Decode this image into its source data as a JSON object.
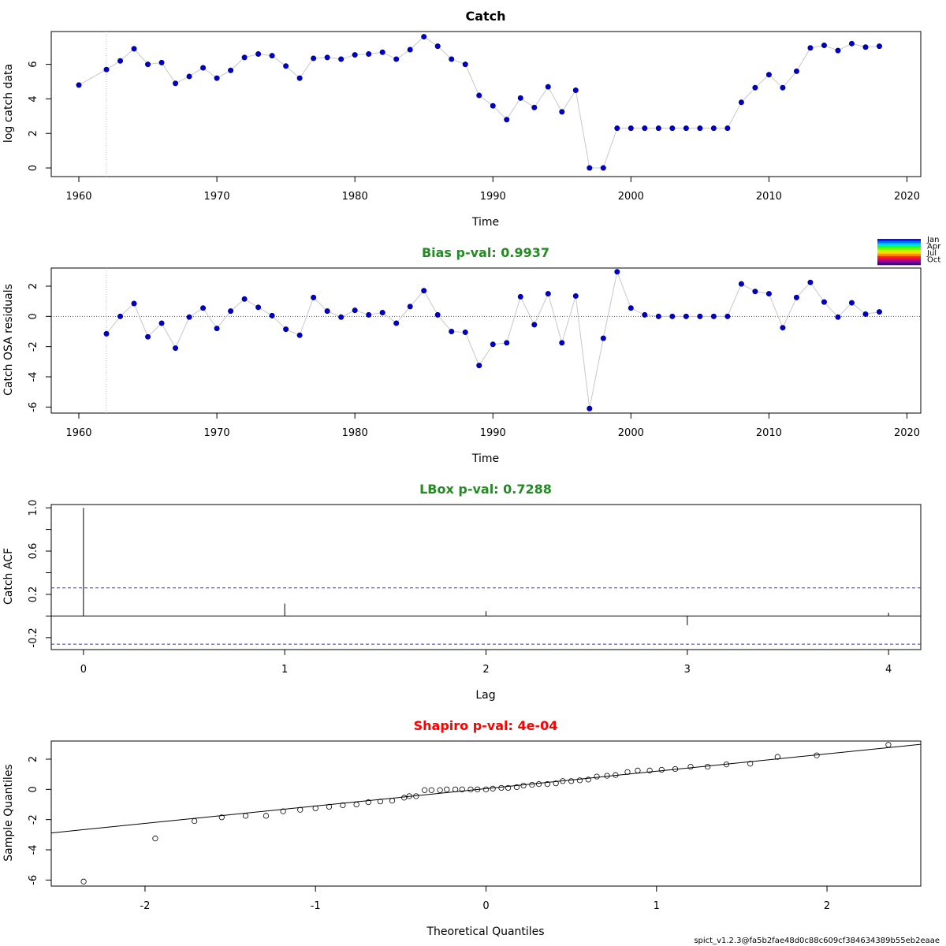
{
  "footer": "spict_v1.2.3@fa5b2fae48d0c88c609cf384634389b55eb2eaae",
  "chart_data": [
    {
      "type": "line",
      "title": "Catch",
      "title_color": "#000000",
      "xlabel": "Time",
      "ylabel": "log catch data",
      "xlim": [
        1958,
        2021
      ],
      "ylim": [
        -0.5,
        7.9
      ],
      "xticks": [
        1960,
        1970,
        1980,
        1990,
        2000,
        2010,
        2020
      ],
      "yticks": [
        0,
        2,
        4,
        6
      ],
      "vline": 1962,
      "point_color": "#0000cd",
      "line_color": "#c8c8c8",
      "x": [
        1960,
        1962,
        1963,
        1964,
        1965,
        1966,
        1967,
        1968,
        1969,
        1970,
        1971,
        1972,
        1973,
        1974,
        1975,
        1976,
        1977,
        1978,
        1979,
        1980,
        1981,
        1982,
        1983,
        1984,
        1985,
        1986,
        1987,
        1988,
        1989,
        1990,
        1991,
        1992,
        1993,
        1994,
        1995,
        1996,
        1997,
        1998,
        1999,
        2000,
        2001,
        2002,
        2003,
        2004,
        2005,
        2006,
        2007,
        2008,
        2009,
        2010,
        2011,
        2012,
        2013,
        2014,
        2015,
        2016,
        2017,
        2018
      ],
      "y": [
        4.8,
        5.7,
        6.2,
        6.9,
        6.0,
        6.1,
        4.9,
        5.3,
        5.8,
        5.2,
        5.65,
        6.4,
        6.6,
        6.5,
        5.9,
        5.2,
        6.35,
        6.4,
        6.3,
        6.55,
        6.6,
        6.7,
        6.3,
        6.85,
        7.6,
        7.05,
        6.3,
        6.0,
        4.2,
        3.6,
        2.8,
        4.05,
        3.5,
        4.7,
        3.25,
        4.5,
        0.0,
        0.0,
        2.3,
        2.3,
        2.3,
        2.3,
        2.3,
        2.3,
        2.3,
        2.3,
        2.3,
        3.8,
        4.65,
        5.4,
        4.65,
        5.6,
        6.95,
        7.1,
        6.8,
        7.2,
        7.0,
        7.05
      ]
    },
    {
      "type": "line",
      "title": "Bias p-val: 0.9937",
      "title_color": "#228b22",
      "xlabel": "Time",
      "ylabel": "Catch OSA residuals",
      "xlim": [
        1958,
        2021
      ],
      "ylim": [
        -6.4,
        3.2
      ],
      "xticks": [
        1960,
        1970,
        1980,
        1990,
        2000,
        2010,
        2020
      ],
      "yticks": [
        -6,
        -4,
        -2,
        0,
        2
      ],
      "vline": 1962,
      "hline": 0,
      "point_color": "#0000cd",
      "line_color": "#c8c8c8",
      "legend": {
        "labels": [
          "Jan",
          "Apr",
          "Jul",
          "Oct"
        ],
        "colors": [
          "#1010ff",
          "#0070ff",
          "#00d0ff",
          "#00ff60",
          "#60ff00",
          "#d0ff00",
          "#ffd000",
          "#ff8000",
          "#ff2000",
          "#e00060",
          "#8000a0",
          "#400080"
        ]
      },
      "x": [
        1962,
        1963,
        1964,
        1965,
        1966,
        1967,
        1968,
        1969,
        1970,
        1971,
        1972,
        1973,
        1974,
        1975,
        1976,
        1977,
        1978,
        1979,
        1980,
        1981,
        1982,
        1983,
        1984,
        1985,
        1986,
        1987,
        1988,
        1989,
        1990,
        1991,
        1992,
        1993,
        1994,
        1995,
        1996,
        1997,
        1998,
        1999,
        2000,
        2001,
        2002,
        2003,
        2004,
        2005,
        2006,
        2007,
        2008,
        2009,
        2010,
        2011,
        2012,
        2013,
        2014,
        2015,
        2016,
        2017,
        2018
      ],
      "y": [
        -1.15,
        0.0,
        0.85,
        -1.35,
        -0.45,
        -2.1,
        -0.05,
        0.55,
        -0.8,
        0.35,
        1.15,
        0.6,
        0.05,
        -0.85,
        -1.25,
        1.25,
        0.35,
        -0.05,
        0.4,
        0.1,
        0.25,
        -0.45,
        0.65,
        1.7,
        0.1,
        -1.0,
        -1.05,
        -3.25,
        -1.85,
        -1.75,
        1.3,
        -0.55,
        1.5,
        -1.75,
        1.35,
        -6.1,
        -1.45,
        2.95,
        0.55,
        0.1,
        0.0,
        0.0,
        0.0,
        0.0,
        0.0,
        0.0,
        2.15,
        1.65,
        1.5,
        -0.75,
        1.25,
        2.25,
        0.95,
        -0.05,
        0.9,
        0.15,
        0.3
      ]
    },
    {
      "type": "bar",
      "title": "LBox p-val: 0.7288",
      "title_color": "#228b22",
      "xlabel": "Lag",
      "ylabel": "Catch ACF",
      "xlim": [
        -0.16,
        4.16
      ],
      "ylim": [
        -0.31,
        1.03
      ],
      "xticks": [
        0,
        1,
        2,
        3,
        4
      ],
      "yticks": [
        -0.2,
        0.2,
        0.6,
        1.0
      ],
      "yticks_minor": [
        0.0,
        0.4,
        0.8
      ],
      "ci": 0.26,
      "categories": [
        0,
        1,
        2,
        3,
        4
      ],
      "values": [
        1.0,
        0.115,
        0.045,
        -0.085,
        0.03
      ]
    },
    {
      "type": "scatter",
      "title": "Shapiro p-val: 4e-04",
      "title_color": "#ff0000",
      "xlabel": "Theoretical Quantiles",
      "ylabel": "Sample Quantiles",
      "xlim": [
        -2.55,
        2.55
      ],
      "ylim": [
        -6.4,
        3.2
      ],
      "xticks": [
        -2,
        -1,
        0,
        1,
        2
      ],
      "yticks": [
        -6,
        -4,
        -2,
        0,
        2
      ],
      "qq_line": {
        "intercept": 0.05,
        "slope": 1.15
      },
      "x": [
        -2.36,
        -1.94,
        -1.71,
        -1.55,
        -1.41,
        -1.29,
        -1.19,
        -1.09,
        -1.0,
        -0.92,
        -0.84,
        -0.76,
        -0.69,
        -0.62,
        -0.55,
        -0.48,
        -0.45,
        -0.41,
        -0.36,
        -0.32,
        -0.27,
        -0.23,
        -0.18,
        -0.14,
        -0.09,
        -0.05,
        0.0,
        0.04,
        0.09,
        0.13,
        0.18,
        0.22,
        0.27,
        0.31,
        0.36,
        0.41,
        0.45,
        0.5,
        0.55,
        0.6,
        0.65,
        0.71,
        0.76,
        0.83,
        0.89,
        0.96,
        1.03,
        1.11,
        1.2,
        1.3,
        1.41,
        1.55,
        1.71,
        1.94,
        2.36
      ],
      "y": [
        -6.1,
        -3.25,
        -2.1,
        -1.85,
        -1.75,
        -1.75,
        -1.45,
        -1.35,
        -1.25,
        -1.15,
        -1.05,
        -1.0,
        -0.85,
        -0.8,
        -0.75,
        -0.55,
        -0.45,
        -0.45,
        -0.05,
        -0.05,
        -0.05,
        0.0,
        0.0,
        0.0,
        0.0,
        0.0,
        0.0,
        0.05,
        0.1,
        0.1,
        0.15,
        0.25,
        0.3,
        0.35,
        0.35,
        0.4,
        0.55,
        0.55,
        0.6,
        0.65,
        0.85,
        0.9,
        0.95,
        1.15,
        1.25,
        1.25,
        1.3,
        1.35,
        1.5,
        1.5,
        1.65,
        1.7,
        2.15,
        2.25,
        2.95
      ]
    }
  ]
}
